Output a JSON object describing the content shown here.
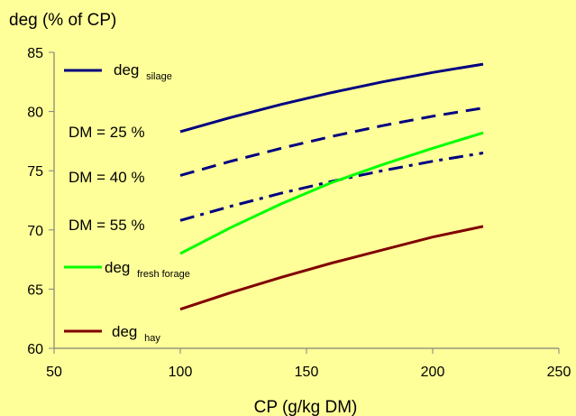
{
  "colors": {
    "background": "#FFFF99",
    "axis": "#808080",
    "silage": "#000080",
    "fresh_forage": "#00FF00",
    "hay": "#800000"
  },
  "chart_data": {
    "type": "line",
    "title": "",
    "ylabel": "deg (% of CP)",
    "xlabel": "CP (g/kg DM)",
    "xlim": [
      50,
      250
    ],
    "ylim": [
      60,
      85
    ],
    "x_ticks": [
      50,
      100,
      150,
      200,
      250
    ],
    "y_ticks": [
      60,
      65,
      70,
      75,
      80,
      85
    ],
    "grid": false,
    "x": [
      100,
      120,
      140,
      160,
      180,
      200,
      220
    ],
    "series": [
      {
        "key": "silage_dm25",
        "style": "solid",
        "color_key": "silage",
        "values": [
          78.3,
          79.5,
          80.6,
          81.6,
          82.5,
          83.3,
          84.0
        ]
      },
      {
        "key": "silage_dm40",
        "style": "dash",
        "color_key": "silage",
        "values": [
          74.6,
          75.8,
          76.9,
          77.9,
          78.8,
          79.6,
          80.3
        ]
      },
      {
        "key": "silage_dm55",
        "style": "dashdot",
        "color_key": "silage",
        "values": [
          70.8,
          72.0,
          73.1,
          74.1,
          75.0,
          75.8,
          76.5
        ]
      },
      {
        "key": "fresh_forage",
        "style": "solid",
        "color_key": "fresh_forage",
        "values": [
          68.0,
          70.2,
          72.2,
          74.0,
          75.5,
          76.9,
          78.2
        ]
      },
      {
        "key": "hay",
        "style": "solid",
        "color_key": "hay",
        "values": [
          63.3,
          64.7,
          66.0,
          67.2,
          68.3,
          69.4,
          70.3
        ]
      }
    ],
    "legend": [
      {
        "label": "deg",
        "sub": "silage",
        "style": "solid",
        "color_key": "silage"
      },
      {
        "label": "deg",
        "sub": "fresh forage",
        "style": "solid",
        "color_key": "fresh_forage"
      },
      {
        "label": "deg",
        "sub": "hay",
        "style": "solid",
        "color_key": "hay"
      }
    ],
    "annotations": [
      "DM = 25 %",
      "DM = 40 %",
      "DM = 55 %"
    ]
  }
}
